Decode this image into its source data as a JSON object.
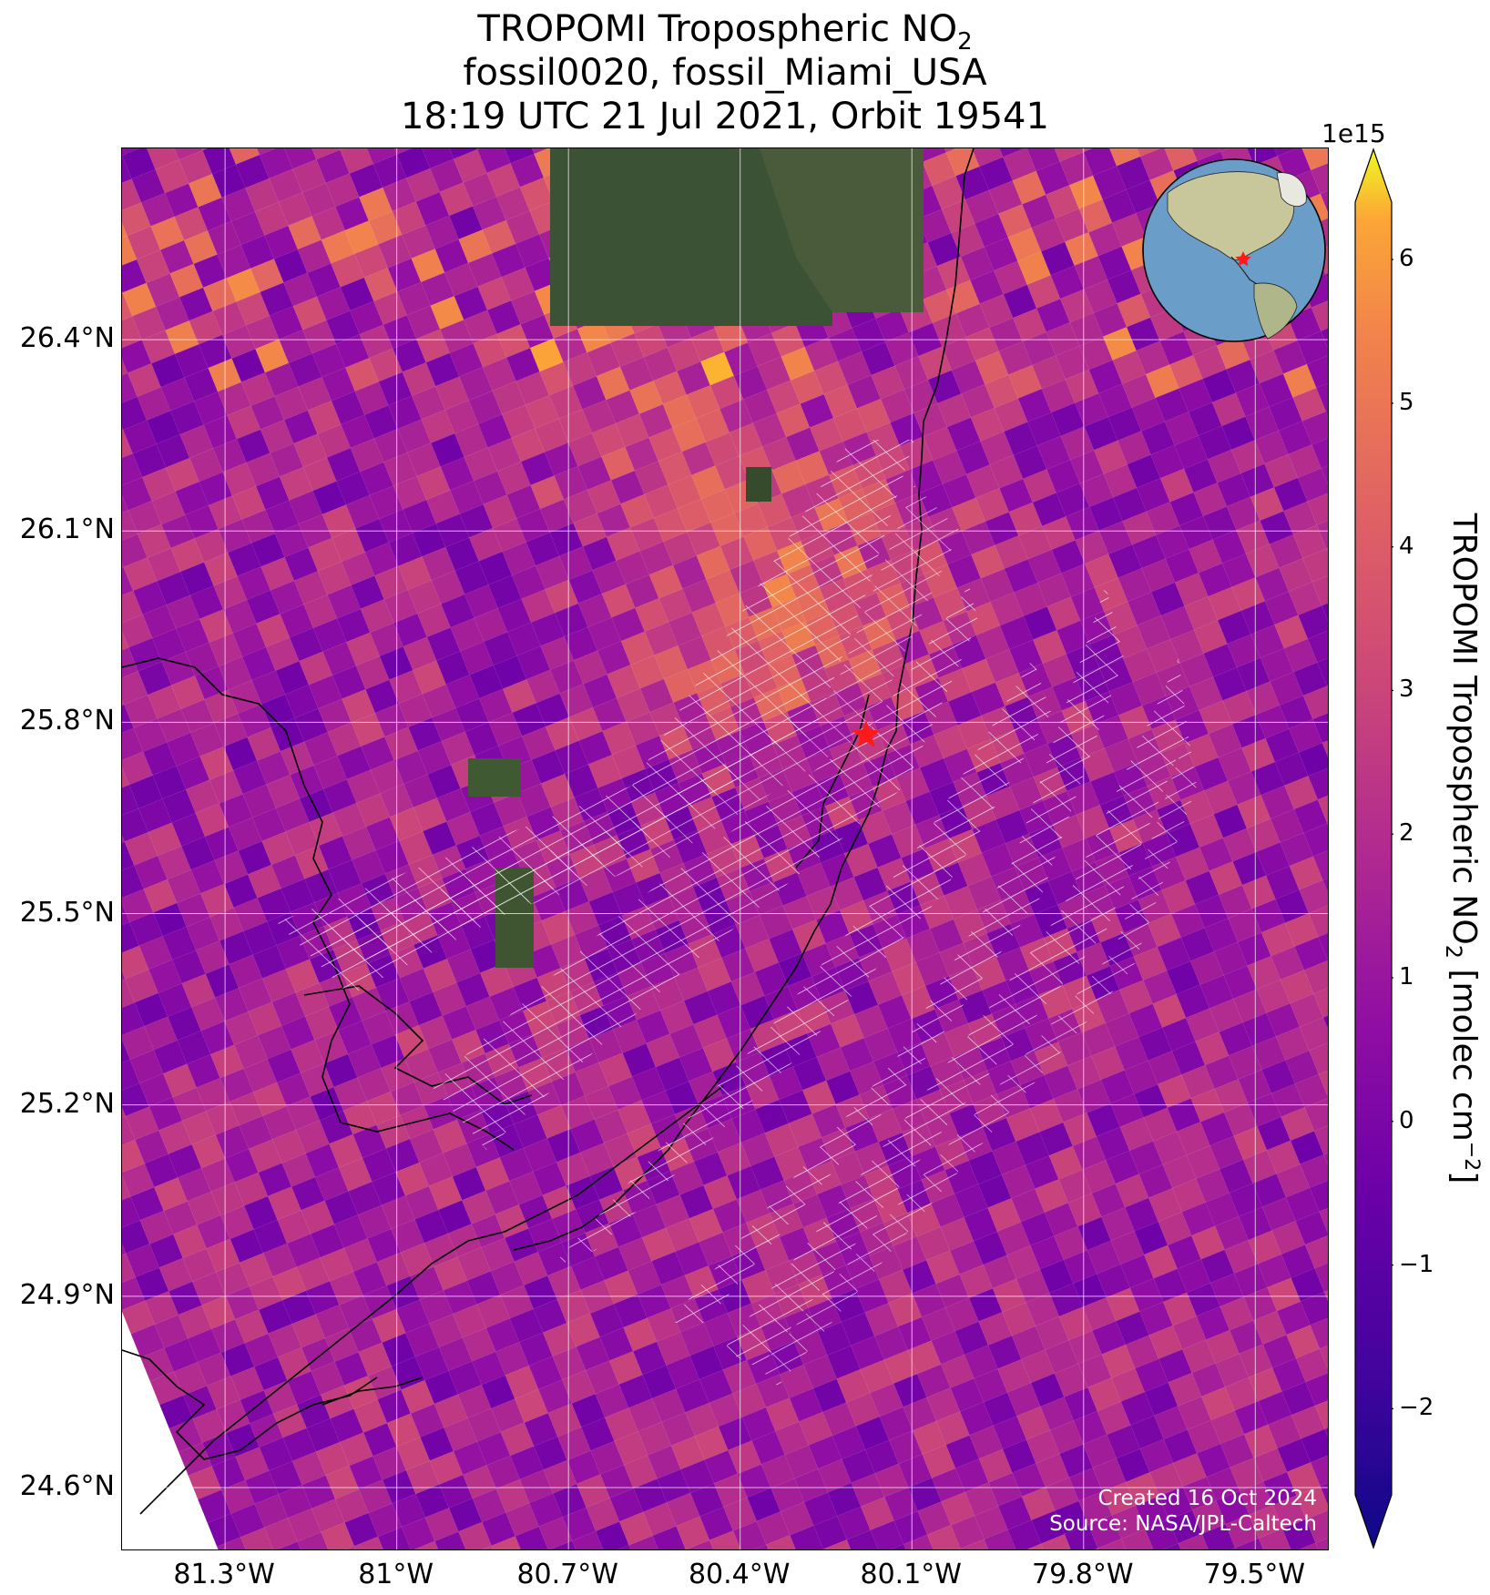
{
  "title": {
    "line1_prefix": "TROPOMI Tropospheric NO",
    "line1_sub": "2",
    "line2": "fossil0020, fossil_Miami_USA",
    "line3": "18:19 UTC 21 Jul 2021, Orbit 19541"
  },
  "map": {
    "lat_range": [
      24.5,
      26.7
    ],
    "lon_range": [
      -81.48,
      -79.37
    ],
    "lat_labels": [
      {
        "value": 26.4,
        "text": "26.4°N"
      },
      {
        "value": 26.1,
        "text": "26.1°N"
      },
      {
        "value": 25.8,
        "text": "25.8°N"
      },
      {
        "value": 25.5,
        "text": "25.5°N"
      },
      {
        "value": 25.2,
        "text": "25.2°N"
      },
      {
        "value": 24.9,
        "text": "24.9°N"
      },
      {
        "value": 24.6,
        "text": "24.6°N"
      }
    ],
    "lon_labels": [
      {
        "value": -81.3,
        "text": "81.3°W"
      },
      {
        "value": -81.0,
        "text": "81°W"
      },
      {
        "value": -80.7,
        "text": "80.7°W"
      },
      {
        "value": -80.4,
        "text": "80.4°W"
      },
      {
        "value": -80.1,
        "text": "80.1°W"
      },
      {
        "value": -79.8,
        "text": "79.8°W"
      },
      {
        "value": -79.5,
        "text": "79.5°W"
      }
    ],
    "target": {
      "name": "fossil_Miami_USA",
      "lat": 25.78,
      "lon": -80.18,
      "marker": "red-star"
    },
    "credits": {
      "created": "Created 16 Oct 2024",
      "source": "Source: NASA/JPL-Caltech"
    }
  },
  "colorbar": {
    "colormap": "plasma",
    "min": -2.6,
    "max": 6.4,
    "exponent_label": "1e15",
    "ticks": [
      {
        "value": 6,
        "text": "6"
      },
      {
        "value": 5,
        "text": "5"
      },
      {
        "value": 4,
        "text": "4"
      },
      {
        "value": 3,
        "text": "3"
      },
      {
        "value": 2,
        "text": "2"
      },
      {
        "value": 1,
        "text": "1"
      },
      {
        "value": 0,
        "text": "0"
      },
      {
        "value": -1,
        "text": "−1"
      },
      {
        "value": -2,
        "text": "−2"
      }
    ],
    "label_prefix": "TROPOMI Tropospheric NO",
    "label_sub": "2",
    "label_middle": " [molec cm",
    "label_sup": "−2",
    "label_suffix": "]"
  },
  "inset_globe": {
    "marker": "red-star",
    "region": "Americas"
  }
}
